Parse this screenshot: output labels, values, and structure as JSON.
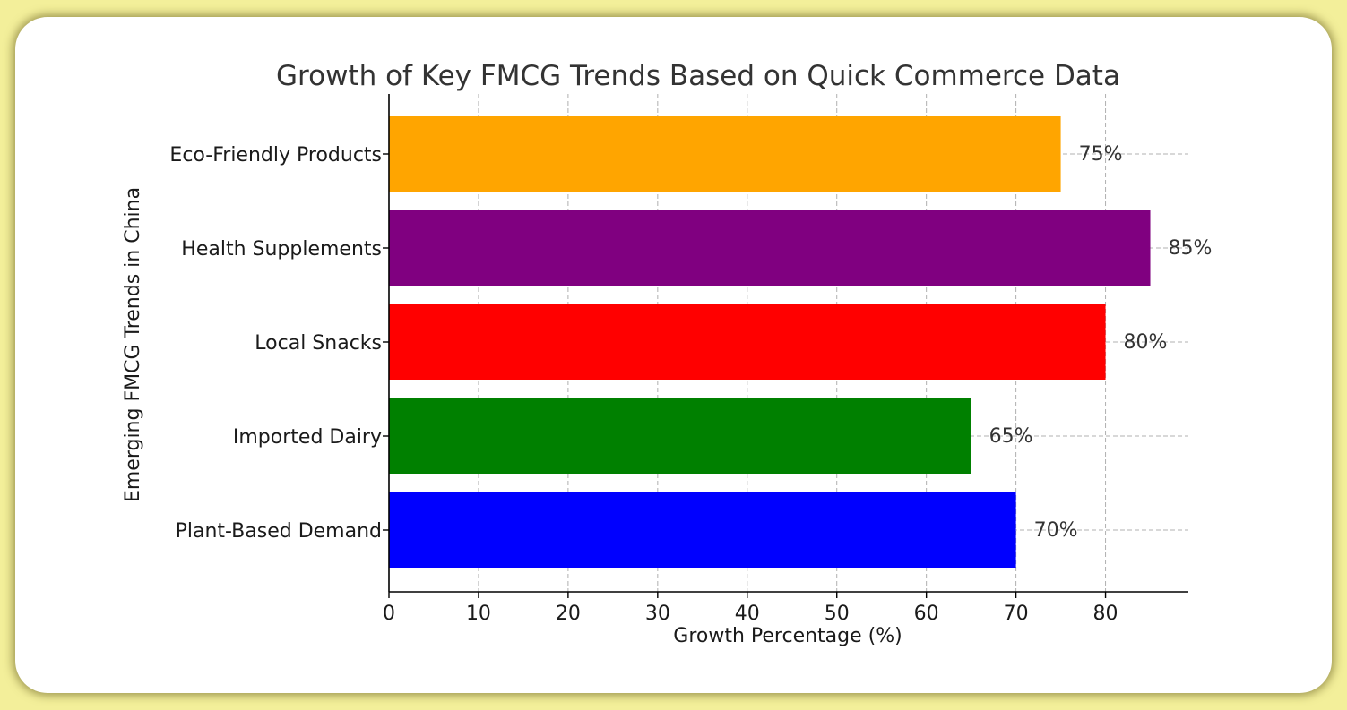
{
  "chart_data": {
    "type": "bar",
    "orientation": "horizontal",
    "title": "Growth of Key FMCG Trends Based on Quick Commerce Data",
    "xlabel": "Growth Percentage (%)",
    "ylabel": "Emerging FMCG Trends in China",
    "xlim": [
      0,
      89.25
    ],
    "xticks": [
      0,
      10,
      20,
      30,
      40,
      50,
      60,
      70,
      80
    ],
    "grid": true,
    "categories": [
      "Plant-Based Demand",
      "Imported Dairy",
      "Local Snacks",
      "Health Supplements",
      "Eco-Friendly Products"
    ],
    "values": [
      70,
      65,
      80,
      85,
      75
    ],
    "value_labels": [
      "70%",
      "65%",
      "80%",
      "85%",
      "75%"
    ],
    "colors": [
      "#0000ff",
      "#008000",
      "#ff0000",
      "#800080",
      "#ffa500"
    ]
  }
}
